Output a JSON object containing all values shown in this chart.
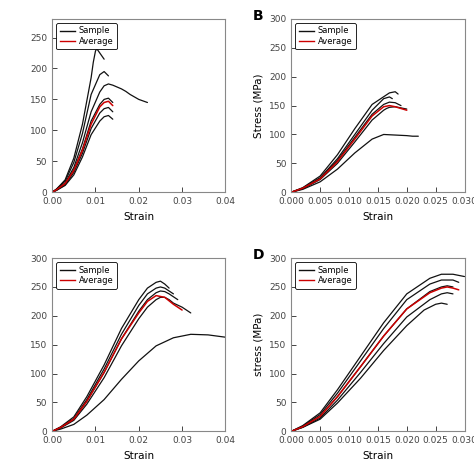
{
  "sample_color": "#111111",
  "average_color": "#cc0000",
  "legend_sample": "Sample",
  "legend_average": "Average",
  "subplots": {
    "A": {
      "xlabel": "Strain",
      "ylabel": "",
      "xlim": [
        0.0,
        0.04
      ],
      "ylim": [
        0,
        280
      ],
      "yticks": [],
      "panel_label": "",
      "samples": [
        {
          "x": [
            0,
            0.001,
            0.003,
            0.005,
            0.007,
            0.009,
            0.0095,
            0.01,
            0.0103,
            0.011,
            0.012
          ],
          "y": [
            0,
            5,
            20,
            55,
            110,
            185,
            210,
            228,
            232,
            225,
            215
          ]
        },
        {
          "x": [
            0,
            0.001,
            0.003,
            0.005,
            0.007,
            0.009,
            0.011,
            0.012,
            0.013
          ],
          "y": [
            0,
            5,
            18,
            48,
            95,
            158,
            190,
            195,
            188
          ]
        },
        {
          "x": [
            0,
            0.001,
            0.003,
            0.005,
            0.007,
            0.009,
            0.011,
            0.012,
            0.013,
            0.014,
            0.015,
            0.016,
            0.017,
            0.018,
            0.02,
            0.022
          ],
          "y": [
            0,
            4,
            15,
            40,
            80,
            130,
            162,
            172,
            175,
            173,
            170,
            167,
            163,
            158,
            150,
            145
          ]
        },
        {
          "x": [
            0,
            0.001,
            0.003,
            0.005,
            0.007,
            0.009,
            0.011,
            0.012,
            0.013,
            0.014
          ],
          "y": [
            0,
            4,
            14,
            36,
            70,
            115,
            142,
            150,
            152,
            145
          ]
        },
        {
          "x": [
            0,
            0.001,
            0.003,
            0.005,
            0.007,
            0.009,
            0.011,
            0.012,
            0.013,
            0.014
          ],
          "y": [
            0,
            3,
            12,
            32,
            63,
            103,
            128,
            135,
            137,
            130
          ]
        },
        {
          "x": [
            0,
            0.001,
            0.003,
            0.005,
            0.007,
            0.009,
            0.011,
            0.012,
            0.013,
            0.014
          ],
          "y": [
            0,
            3,
            11,
            28,
            57,
            93,
            115,
            122,
            124,
            118
          ]
        }
      ],
      "average": {
        "x": [
          0,
          0.001,
          0.003,
          0.005,
          0.007,
          0.009,
          0.011,
          0.012,
          0.013,
          0.014
        ],
        "y": [
          0,
          4,
          14,
          35,
          68,
          110,
          138,
          145,
          147,
          140
        ]
      }
    },
    "B": {
      "xlabel": "Strain",
      "ylabel": "Stress (MPa)",
      "xlim": [
        0.0,
        0.03
      ],
      "ylim": [
        0,
        300
      ],
      "yticks": [
        0,
        50,
        100,
        150,
        200,
        250,
        300
      ],
      "panel_label": "B",
      "samples": [
        {
          "x": [
            0,
            0.002,
            0.005,
            0.008,
            0.011,
            0.014,
            0.017,
            0.018,
            0.0185
          ],
          "y": [
            0,
            8,
            28,
            65,
            110,
            152,
            172,
            174,
            170
          ]
        },
        {
          "x": [
            0,
            0.002,
            0.005,
            0.008,
            0.011,
            0.014,
            0.016,
            0.017,
            0.0175
          ],
          "y": [
            0,
            7,
            25,
            58,
            100,
            142,
            162,
            165,
            162
          ]
        },
        {
          "x": [
            0,
            0.002,
            0.005,
            0.008,
            0.011,
            0.014,
            0.016,
            0.017,
            0.018,
            0.019
          ],
          "y": [
            0,
            7,
            24,
            55,
            95,
            135,
            152,
            156,
            155,
            150
          ]
        },
        {
          "x": [
            0,
            0.002,
            0.005,
            0.008,
            0.011,
            0.014,
            0.016,
            0.0165,
            0.017,
            0.018,
            0.019,
            0.02
          ],
          "y": [
            0,
            6,
            22,
            50,
            87,
            125,
            142,
            145,
            147,
            148,
            146,
            144
          ]
        },
        {
          "x": [
            0,
            0.002,
            0.005,
            0.008,
            0.011,
            0.014,
            0.016,
            0.018,
            0.02,
            0.021,
            0.022
          ],
          "y": [
            0,
            5,
            18,
            40,
            68,
            92,
            100,
            99,
            98,
            97,
            97
          ]
        }
      ],
      "average": {
        "x": [
          0,
          0.002,
          0.005,
          0.008,
          0.011,
          0.014,
          0.016,
          0.017,
          0.018,
          0.019,
          0.02
        ],
        "y": [
          0,
          7,
          23,
          53,
          92,
          132,
          148,
          150,
          148,
          145,
          142
        ]
      }
    },
    "C": {
      "xlabel": "Strain",
      "ylabel": "",
      "xlim": [
        0.0,
        0.04
      ],
      "ylim": [
        0,
        300
      ],
      "yticks": [],
      "panel_label": "",
      "samples": [
        {
          "x": [
            0,
            0.002,
            0.005,
            0.008,
            0.012,
            0.016,
            0.02,
            0.022,
            0.024,
            0.025,
            0.026,
            0.027
          ],
          "y": [
            0,
            8,
            25,
            60,
            115,
            178,
            228,
            248,
            258,
            260,
            255,
            248
          ]
        },
        {
          "x": [
            0,
            0.002,
            0.005,
            0.008,
            0.012,
            0.016,
            0.02,
            0.022,
            0.024,
            0.025,
            0.026,
            0.027,
            0.028
          ],
          "y": [
            0,
            7,
            22,
            55,
            108,
            168,
            218,
            238,
            248,
            250,
            248,
            243,
            238
          ]
        },
        {
          "x": [
            0,
            0.002,
            0.005,
            0.008,
            0.012,
            0.016,
            0.02,
            0.022,
            0.024,
            0.025,
            0.026,
            0.027,
            0.028,
            0.029
          ],
          "y": [
            0,
            7,
            21,
            52,
            102,
            160,
            208,
            228,
            240,
            243,
            242,
            238,
            233,
            228
          ]
        },
        {
          "x": [
            0,
            0.002,
            0.005,
            0.008,
            0.012,
            0.016,
            0.02,
            0.022,
            0.024,
            0.025,
            0.026,
            0.027,
            0.028,
            0.03,
            0.032
          ],
          "y": [
            0,
            6,
            19,
            47,
            93,
            148,
            195,
            215,
            228,
            232,
            232,
            228,
            222,
            215,
            205
          ]
        },
        {
          "x": [
            0,
            0.002,
            0.005,
            0.008,
            0.012,
            0.016,
            0.02,
            0.024,
            0.028,
            0.032,
            0.036,
            0.04
          ],
          "y": [
            0,
            4,
            12,
            28,
            55,
            90,
            122,
            148,
            162,
            168,
            167,
            163
          ]
        }
      ],
      "average": {
        "x": [
          0,
          0.002,
          0.005,
          0.008,
          0.012,
          0.016,
          0.02,
          0.022,
          0.024,
          0.026,
          0.028,
          0.03
        ],
        "y": [
          0,
          7,
          21,
          52,
          102,
          160,
          205,
          225,
          235,
          232,
          220,
          210
        ]
      }
    },
    "D": {
      "xlabel": "Strain",
      "ylabel": "stress (MPa)",
      "xlim": [
        0.0,
        0.03
      ],
      "ylim": [
        0,
        300
      ],
      "yticks": [
        0,
        50,
        100,
        150,
        200,
        250,
        300
      ],
      "panel_label": "D",
      "samples": [
        {
          "x": [
            0,
            0.002,
            0.005,
            0.008,
            0.012,
            0.016,
            0.02,
            0.024,
            0.026,
            0.028,
            0.03
          ],
          "y": [
            0,
            10,
            32,
            72,
            130,
            188,
            238,
            265,
            272,
            272,
            268
          ]
        },
        {
          "x": [
            0,
            0.002,
            0.005,
            0.008,
            0.012,
            0.016,
            0.02,
            0.024,
            0.026,
            0.028,
            0.029
          ],
          "y": [
            0,
            9,
            29,
            66,
            122,
            178,
            228,
            255,
            262,
            262,
            258
          ]
        },
        {
          "x": [
            0,
            0.002,
            0.005,
            0.008,
            0.012,
            0.016,
            0.02,
            0.024,
            0.026,
            0.027,
            0.028
          ],
          "y": [
            0,
            8,
            26,
            60,
            112,
            165,
            212,
            242,
            250,
            252,
            250
          ]
        },
        {
          "x": [
            0,
            0.002,
            0.005,
            0.008,
            0.012,
            0.016,
            0.02,
            0.024,
            0.026,
            0.027,
            0.028
          ],
          "y": [
            0,
            7,
            23,
            54,
            102,
            152,
            198,
            228,
            238,
            240,
            238
          ]
        },
        {
          "x": [
            0,
            0.002,
            0.005,
            0.008,
            0.012,
            0.016,
            0.02,
            0.023,
            0.025,
            0.026,
            0.027
          ],
          "y": [
            0,
            7,
            21,
            49,
            92,
            140,
            183,
            210,
            220,
            222,
            220
          ]
        }
      ],
      "average": {
        "x": [
          0,
          0.002,
          0.005,
          0.008,
          0.012,
          0.016,
          0.02,
          0.024,
          0.026,
          0.027,
          0.028,
          0.029
        ],
        "y": [
          0,
          8,
          26,
          60,
          112,
          165,
          212,
          240,
          248,
          250,
          248,
          245
        ]
      }
    }
  }
}
